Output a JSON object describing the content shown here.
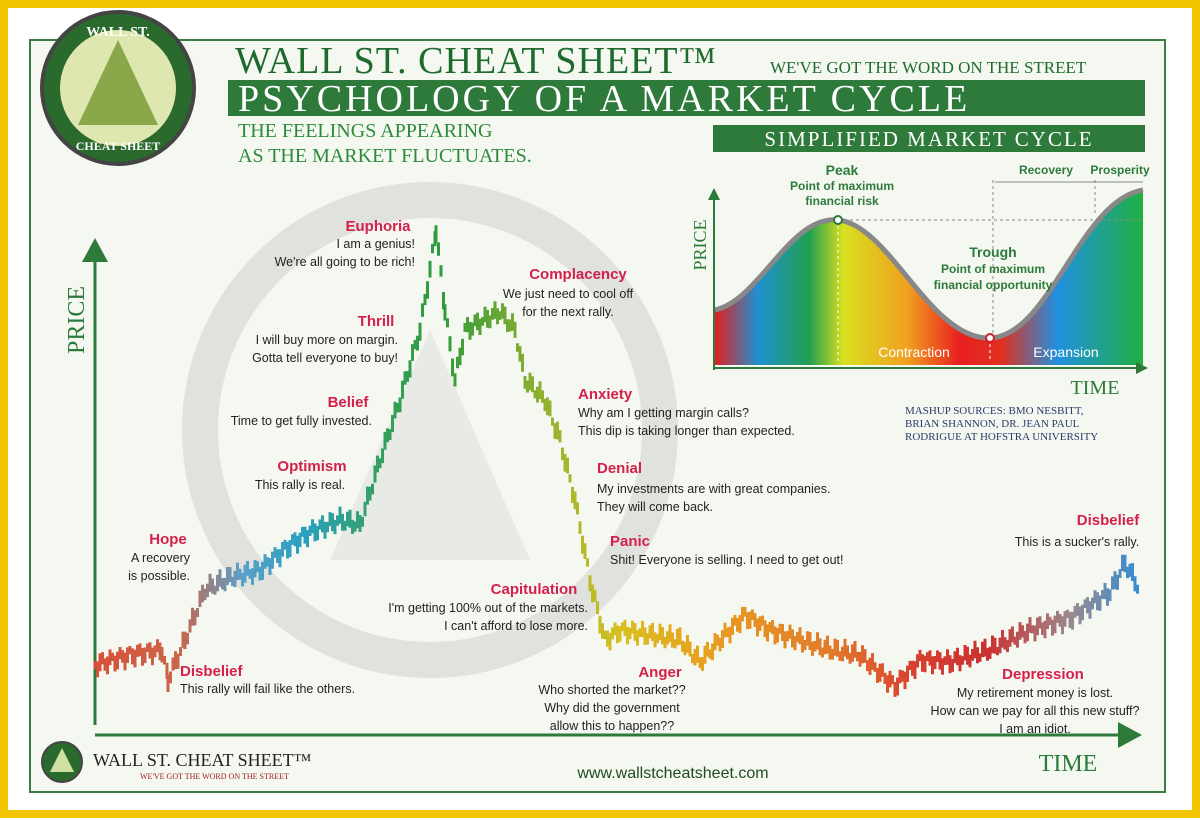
{
  "logo": {
    "top": "WALL ST.",
    "bottom": "CHEAT SHEET"
  },
  "header": {
    "brand": "WALL ST. CHEAT SHEET™",
    "tagline": "WE'VE GOT THE WORD ON THE STREET",
    "title": "PSYCHOLOGY OF A MARKET CYCLE",
    "subtitle": [
      "THE FEELINGS APPEARING",
      "AS THE MARKET FLUCTUATES."
    ]
  },
  "axes": {
    "y": "PRICE",
    "x": "TIME"
  },
  "stages": [
    {
      "name": "Disbelief",
      "text": [
        "This rally will fail like the others."
      ]
    },
    {
      "name": "Hope",
      "text": [
        "A recovery",
        "is possible."
      ]
    },
    {
      "name": "Optimism",
      "text": [
        "This rally is real."
      ]
    },
    {
      "name": "Belief",
      "text": [
        "Time to get fully invested."
      ]
    },
    {
      "name": "Thrill",
      "text": [
        "I will buy more on margin.",
        "Gotta tell everyone to buy!"
      ]
    },
    {
      "name": "Euphoria",
      "text": [
        "I am a genius!",
        "We're all going to be rich!"
      ]
    },
    {
      "name": "Complacency",
      "text": [
        "We just need to cool off",
        "for the next rally."
      ]
    },
    {
      "name": "Anxiety",
      "text": [
        "Why am I getting margin calls?",
        "This dip is taking longer than expected."
      ]
    },
    {
      "name": "Denial",
      "text": [
        "My investments are with great companies.",
        "They will come back."
      ]
    },
    {
      "name": "Panic",
      "text": [
        "Shit! Everyone is selling. I need to get out!"
      ]
    },
    {
      "name": "Capitulation",
      "text": [
        "I'm getting 100% out of the markets.",
        "I can't afford to lose more."
      ]
    },
    {
      "name": "Anger",
      "text": [
        "Who shorted the market??",
        "Why did the government",
        "allow this to happen??"
      ]
    },
    {
      "name": "Depression",
      "text": [
        "My retirement money is lost.",
        "How can we pay for all this new stuff?",
        "I am an idiot."
      ]
    },
    {
      "name": "Disbelief",
      "text": [
        "This is a sucker's rally."
      ]
    }
  ],
  "inset": {
    "title": "SIMPLIFIED MARKET CYCLE",
    "peak": "Peak",
    "peak_text": [
      "Point of maximum",
      "financial risk"
    ],
    "trough": "Trough",
    "trough_text": [
      "Point of maximum",
      "financial opportunity"
    ],
    "recovery": "Recovery",
    "prosperity": "Prosperity",
    "contraction": "Contraction",
    "expansion": "Expansion",
    "y": "PRICE",
    "x": "TIME"
  },
  "sources": [
    "MASHUP SOURCES: BMO NESBITT,",
    "BRIAN SHANNON, DR. JEAN PAUL",
    "RODRIGUE AT HOFSTRA UNIVERSITY"
  ],
  "footer": {
    "brand": "WALL ST. CHEAT SHEET™",
    "tagline": "WE'VE GOT THE WORD ON THE STREET",
    "url": "www.wallstcheatsheet.com"
  }
}
